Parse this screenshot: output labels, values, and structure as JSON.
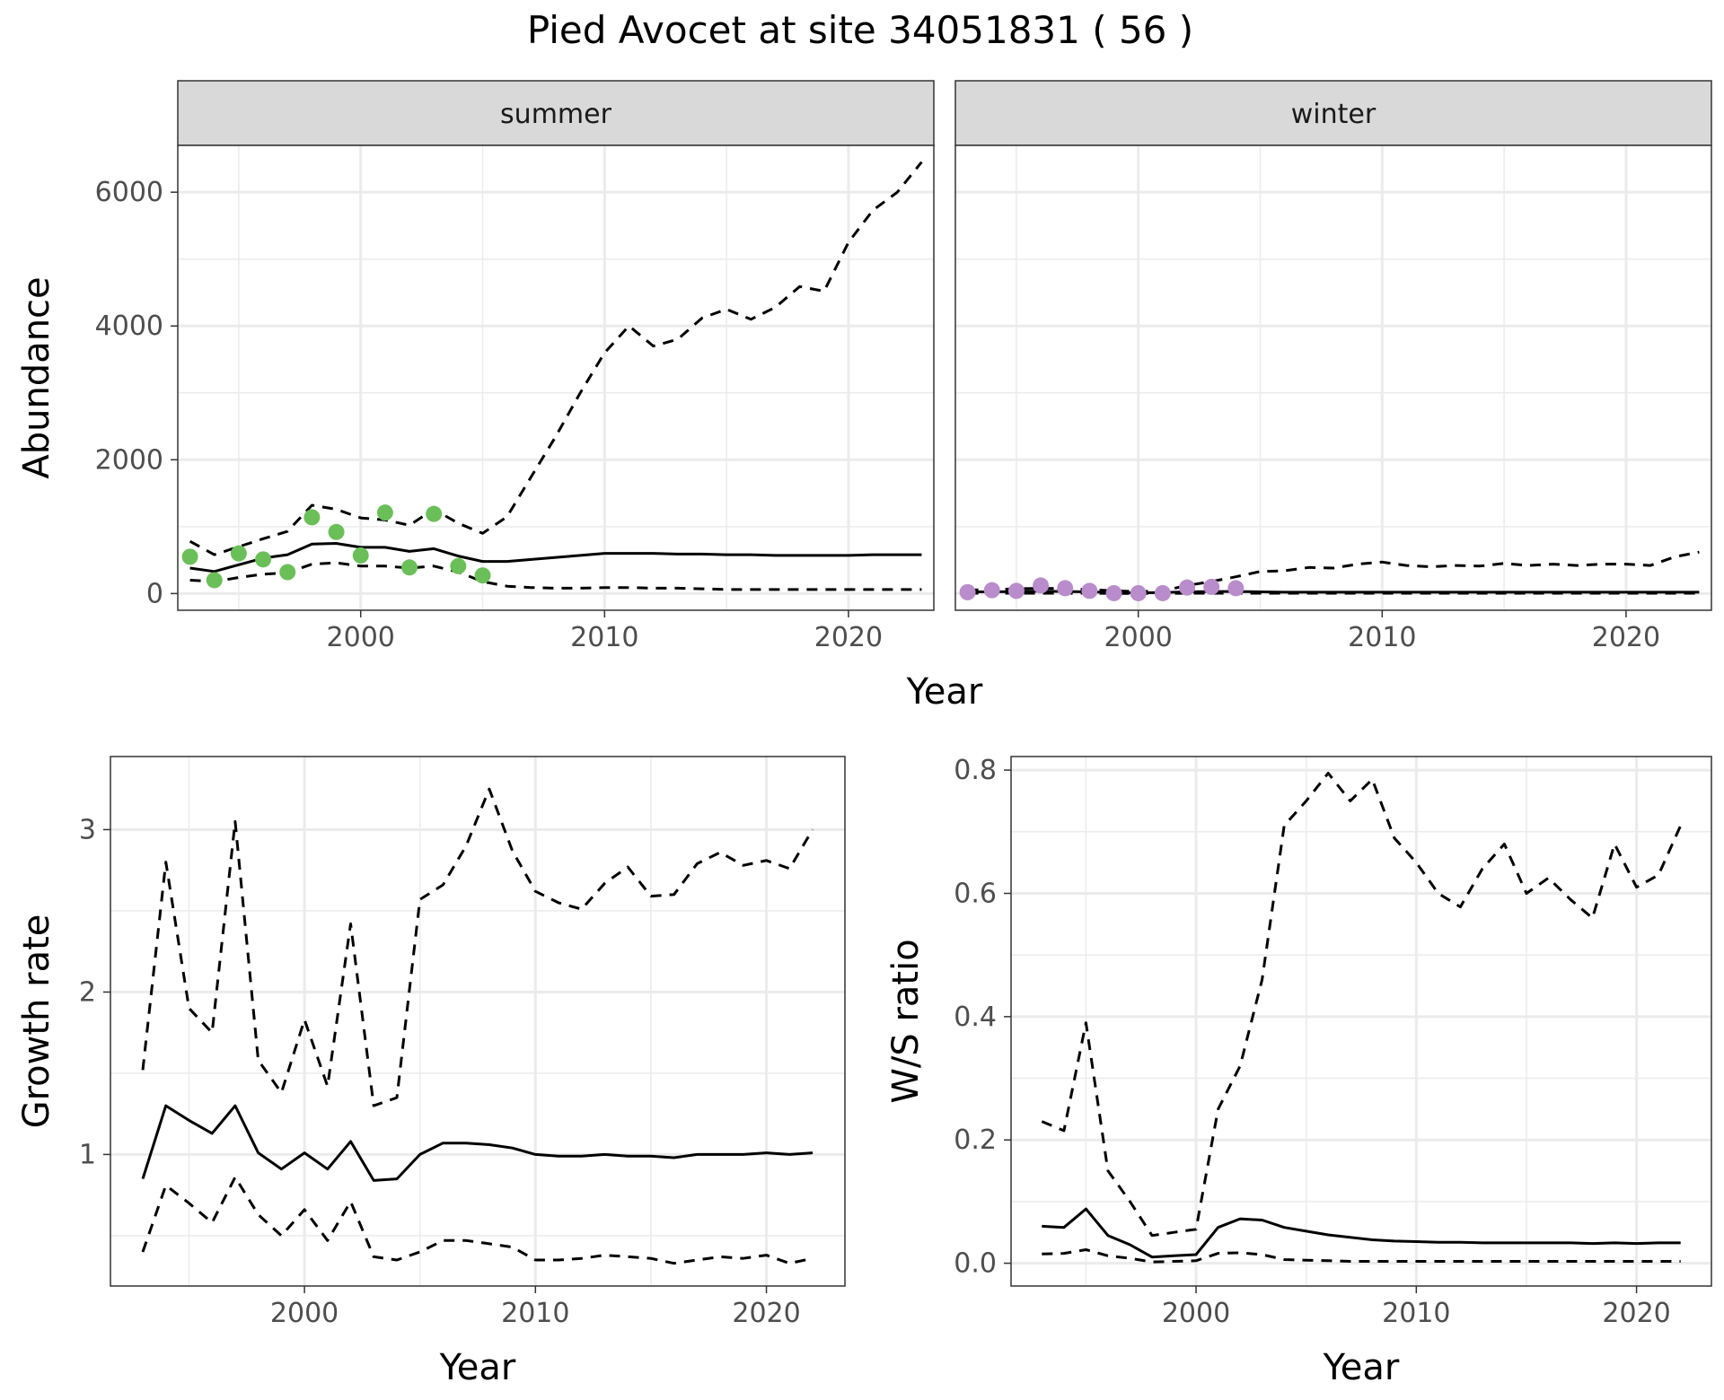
{
  "figure": {
    "title": "Pied Avocet at site 34051831 ( 56 )"
  },
  "colors": {
    "summer_points": "#6bbf59",
    "winter_points": "#b98ccb",
    "lines": "#000000",
    "strip_fill": "#d9d9d9",
    "grid": "#ebebeb"
  },
  "chart_data": [
    {
      "type": "line",
      "panel": "abundance",
      "xlabel": "Year",
      "ylabel": "Abundance",
      "xlim": [
        1992.5,
        2023.5
      ],
      "ylim": [
        -250,
        6700
      ],
      "x_ticks": [
        2000,
        2010,
        2020
      ],
      "y_ticks": [
        0,
        2000,
        4000,
        6000
      ],
      "grid": true,
      "facets": [
        {
          "strip_label": "summer",
          "points": [
            {
              "x": 1993,
              "y": 550
            },
            {
              "x": 1994,
              "y": 200
            },
            {
              "x": 1995,
              "y": 600
            },
            {
              "x": 1996,
              "y": 510
            },
            {
              "x": 1997,
              "y": 320
            },
            {
              "x": 1998,
              "y": 1140
            },
            {
              "x": 1999,
              "y": 920
            },
            {
              "x": 2000,
              "y": 570
            },
            {
              "x": 2001,
              "y": 1210
            },
            {
              "x": 2002,
              "y": 390
            },
            {
              "x": 2003,
              "y": 1190
            },
            {
              "x": 2004,
              "y": 410
            },
            {
              "x": 2005,
              "y": 270
            }
          ],
          "series": [
            {
              "role": "estimate",
              "dash": false,
              "x": [
                1993,
                1994,
                1995,
                1996,
                1997,
                1998,
                1999,
                2000,
                2001,
                2002,
                2003,
                2004,
                2005,
                2006,
                2007,
                2008,
                2009,
                2010,
                2011,
                2012,
                2013,
                2014,
                2015,
                2016,
                2017,
                2018,
                2019,
                2020,
                2021,
                2022,
                2023
              ],
              "y": [
                380,
                330,
                430,
                530,
                580,
                740,
                750,
                690,
                690,
                630,
                670,
                560,
                480,
                480,
                510,
                540,
                570,
                600,
                600,
                600,
                590,
                590,
                580,
                580,
                570,
                570,
                570,
                570,
                580,
                580,
                580
              ]
            },
            {
              "role": "upper",
              "dash": true,
              "x": [
                1993,
                1994,
                1995,
                1996,
                1997,
                1998,
                1999,
                2000,
                2001,
                2002,
                2003,
                2004,
                2005,
                2006,
                2007,
                2008,
                2009,
                2010,
                2011,
                2012,
                2013,
                2014,
                2015,
                2016,
                2017,
                2018,
                2019,
                2020,
                2021,
                2022,
                2023
              ],
              "y": [
                780,
                580,
                700,
                820,
                930,
                1320,
                1260,
                1130,
                1100,
                1020,
                1260,
                1050,
                900,
                1150,
                1750,
                2350,
                3000,
                3600,
                4000,
                3700,
                3800,
                4120,
                4250,
                4100,
                4280,
                4590,
                4520,
                5250,
                5730,
                6000,
                6450
              ]
            },
            {
              "role": "lower",
              "dash": true,
              "x": [
                1993,
                1994,
                1995,
                1996,
                1997,
                1998,
                1999,
                2000,
                2001,
                2002,
                2003,
                2004,
                2005,
                2006,
                2007,
                2008,
                2009,
                2010,
                2011,
                2012,
                2013,
                2014,
                2015,
                2016,
                2017,
                2018,
                2019,
                2020,
                2021,
                2022,
                2023
              ],
              "y": [
                200,
                180,
                240,
                290,
                310,
                440,
                460,
                410,
                410,
                380,
                410,
                320,
                180,
                110,
                90,
                80,
                80,
                90,
                90,
                80,
                80,
                70,
                60,
                60,
                60,
                60,
                60,
                60,
                60,
                60,
                60
              ]
            }
          ]
        },
        {
          "strip_label": "winter",
          "points": [
            {
              "x": 1993,
              "y": 20
            },
            {
              "x": 1994,
              "y": 50
            },
            {
              "x": 1995,
              "y": 40
            },
            {
              "x": 1996,
              "y": 120
            },
            {
              "x": 1997,
              "y": 80
            },
            {
              "x": 1998,
              "y": 40
            },
            {
              "x": 1999,
              "y": 5
            },
            {
              "x": 2000,
              "y": 5
            },
            {
              "x": 2001,
              "y": 5
            },
            {
              "x": 2002,
              "y": 90
            },
            {
              "x": 2003,
              "y": 100
            },
            {
              "x": 2004,
              "y": 80
            }
          ],
          "series": [
            {
              "role": "estimate",
              "dash": false,
              "x": [
                1993,
                1994,
                1995,
                1996,
                1997,
                1998,
                1999,
                2000,
                2001,
                2002,
                2003,
                2004,
                2005,
                2006,
                2007,
                2008,
                2009,
                2010,
                2011,
                2012,
                2013,
                2014,
                2015,
                2016,
                2017,
                2018,
                2019,
                2020,
                2021,
                2022,
                2023
              ],
              "y": [
                25,
                25,
                30,
                35,
                30,
                25,
                15,
                10,
                15,
                25,
                30,
                30,
                25,
                20,
                20,
                20,
                20,
                20,
                20,
                20,
                20,
                20,
                20,
                20,
                20,
                20,
                20,
                20,
                20,
                20,
                20
              ]
            },
            {
              "role": "upper",
              "dash": true,
              "x": [
                1993,
                1994,
                1995,
                1996,
                1997,
                1998,
                1999,
                2000,
                2001,
                2002,
                2003,
                2004,
                2005,
                2006,
                2007,
                2008,
                2009,
                2010,
                2011,
                2012,
                2013,
                2014,
                2015,
                2016,
                2017,
                2018,
                2019,
                2020,
                2021,
                2022,
                2023
              ],
              "y": [
                50,
                60,
                70,
                80,
                70,
                60,
                40,
                30,
                40,
                120,
                180,
                250,
                330,
                340,
                390,
                380,
                440,
                470,
                420,
                400,
                420,
                410,
                450,
                420,
                440,
                420,
                440,
                440,
                420,
                550,
                620
              ]
            },
            {
              "role": "lower",
              "dash": true,
              "x": [
                1993,
                1994,
                1995,
                1996,
                1997,
                1998,
                1999,
                2000,
                2001,
                2002,
                2003,
                2004,
                2005,
                2006,
                2007,
                2008,
                2009,
                2010,
                2011,
                2012,
                2013,
                2014,
                2015,
                2016,
                2017,
                2018,
                2019,
                2020,
                2021,
                2022,
                2023
              ],
              "y": [
                5,
                5,
                5,
                5,
                5,
                5,
                2,
                2,
                2,
                5,
                5,
                5,
                5,
                5,
                5,
                5,
                5,
                5,
                5,
                5,
                5,
                5,
                5,
                5,
                5,
                5,
                5,
                5,
                5,
                5,
                5
              ]
            }
          ]
        }
      ]
    },
    {
      "type": "line",
      "panel": "growth",
      "xlabel": "Year",
      "ylabel": "Growth rate",
      "xlim": [
        1991.6,
        2023.4
      ],
      "ylim": [
        0.19,
        3.45
      ],
      "x_ticks": [
        2000,
        2010,
        2020
      ],
      "y_ticks": [
        1,
        2,
        3
      ],
      "grid": true,
      "series": [
        {
          "role": "estimate",
          "dash": false,
          "x": [
            1993,
            1994,
            1995,
            1996,
            1997,
            1998,
            1999,
            2000,
            2001,
            2002,
            2003,
            2004,
            2005,
            2006,
            2007,
            2008,
            2009,
            2010,
            2011,
            2012,
            2013,
            2014,
            2015,
            2016,
            2017,
            2018,
            2019,
            2020,
            2021,
            2022
          ],
          "y": [
            0.85,
            1.3,
            1.21,
            1.13,
            1.3,
            1.01,
            0.91,
            1.01,
            0.91,
            1.08,
            0.84,
            0.85,
            1.0,
            1.07,
            1.07,
            1.06,
            1.04,
            1.0,
            0.99,
            0.99,
            1.0,
            0.99,
            0.99,
            0.98,
            1.0,
            1.0,
            1.0,
            1.01,
            1.0,
            1.01
          ]
        },
        {
          "role": "upper",
          "dash": true,
          "x": [
            1993,
            1994,
            1995,
            1996,
            1997,
            1998,
            1999,
            2000,
            2001,
            2002,
            2003,
            2004,
            2005,
            2006,
            2007,
            2008,
            2009,
            2010,
            2011,
            2012,
            2013,
            2014,
            2015,
            2016,
            2017,
            2018,
            2019,
            2020,
            2021,
            2022
          ],
          "y": [
            1.52,
            2.8,
            1.9,
            1.75,
            3.05,
            1.58,
            1.38,
            1.83,
            1.42,
            2.42,
            1.3,
            1.35,
            2.57,
            2.66,
            2.9,
            3.25,
            2.87,
            2.62,
            2.55,
            2.51,
            2.67,
            2.77,
            2.59,
            2.6,
            2.79,
            2.86,
            2.78,
            2.81,
            2.76,
            3.0
          ]
        },
        {
          "role": "lower",
          "dash": true,
          "x": [
            1993,
            1994,
            1995,
            1996,
            1997,
            1998,
            1999,
            2000,
            2001,
            2002,
            2003,
            2004,
            2005,
            2006,
            2007,
            2008,
            2009,
            2010,
            2011,
            2012,
            2013,
            2014,
            2015,
            2016,
            2017,
            2018,
            2019,
            2020,
            2021,
            2022
          ],
          "y": [
            0.4,
            0.81,
            0.7,
            0.58,
            0.86,
            0.63,
            0.5,
            0.66,
            0.47,
            0.71,
            0.37,
            0.35,
            0.4,
            0.47,
            0.47,
            0.45,
            0.43,
            0.35,
            0.35,
            0.36,
            0.38,
            0.37,
            0.36,
            0.33,
            0.35,
            0.37,
            0.36,
            0.38,
            0.33,
            0.36
          ]
        }
      ]
    },
    {
      "type": "line",
      "panel": "ws_ratio",
      "xlabel": "Year",
      "ylabel": "W/S ratio",
      "xlim": [
        1991.6,
        2023.4
      ],
      "ylim": [
        -0.037,
        0.822
      ],
      "x_ticks": [
        2000,
        2010,
        2020
      ],
      "y_ticks": [
        0.0,
        0.2,
        0.4,
        0.6,
        0.8
      ],
      "y_tick_labels": [
        "0.0",
        "0.2",
        "0.4",
        "0.6",
        "0.8"
      ],
      "grid": true,
      "series": [
        {
          "role": "estimate",
          "dash": false,
          "x": [
            1993,
            1994,
            1995,
            1996,
            1997,
            1998,
            1999,
            2000,
            2001,
            2002,
            2003,
            2004,
            2005,
            2006,
            2007,
            2008,
            2009,
            2010,
            2011,
            2012,
            2013,
            2014,
            2015,
            2016,
            2017,
            2018,
            2019,
            2020,
            2021,
            2022
          ],
          "y": [
            0.06,
            0.058,
            0.088,
            0.045,
            0.03,
            0.01,
            0.012,
            0.014,
            0.058,
            0.072,
            0.07,
            0.058,
            0.052,
            0.046,
            0.042,
            0.038,
            0.036,
            0.035,
            0.034,
            0.034,
            0.033,
            0.033,
            0.033,
            0.033,
            0.033,
            0.032,
            0.033,
            0.032,
            0.033,
            0.033
          ]
        },
        {
          "role": "upper",
          "dash": true,
          "x": [
            1993,
            1994,
            1995,
            1996,
            1997,
            1998,
            1999,
            2000,
            2001,
            2002,
            2003,
            2004,
            2005,
            2006,
            2007,
            2008,
            2009,
            2010,
            2011,
            2012,
            2013,
            2014,
            2015,
            2016,
            2017,
            2018,
            2019,
            2020,
            2021,
            2022
          ],
          "y": [
            0.23,
            0.215,
            0.39,
            0.15,
            0.1,
            0.045,
            0.05,
            0.055,
            0.25,
            0.32,
            0.46,
            0.71,
            0.75,
            0.795,
            0.75,
            0.785,
            0.69,
            0.65,
            0.6,
            0.578,
            0.64,
            0.68,
            0.6,
            0.625,
            0.59,
            0.56,
            0.68,
            0.61,
            0.63,
            0.71
          ]
        },
        {
          "role": "lower",
          "dash": true,
          "x": [
            1993,
            1994,
            1995,
            1996,
            1997,
            1998,
            1999,
            2000,
            2001,
            2002,
            2003,
            2004,
            2005,
            2006,
            2007,
            2008,
            2009,
            2010,
            2011,
            2012,
            2013,
            2014,
            2015,
            2016,
            2017,
            2018,
            2019,
            2020,
            2021,
            2022
          ],
          "y": [
            0.015,
            0.016,
            0.022,
            0.012,
            0.008,
            0.002,
            0.003,
            0.004,
            0.016,
            0.017,
            0.014,
            0.006,
            0.005,
            0.004,
            0.003,
            0.003,
            0.003,
            0.003,
            0.003,
            0.003,
            0.003,
            0.003,
            0.003,
            0.003,
            0.003,
            0.003,
            0.003,
            0.003,
            0.003,
            0.003
          ]
        }
      ]
    }
  ]
}
